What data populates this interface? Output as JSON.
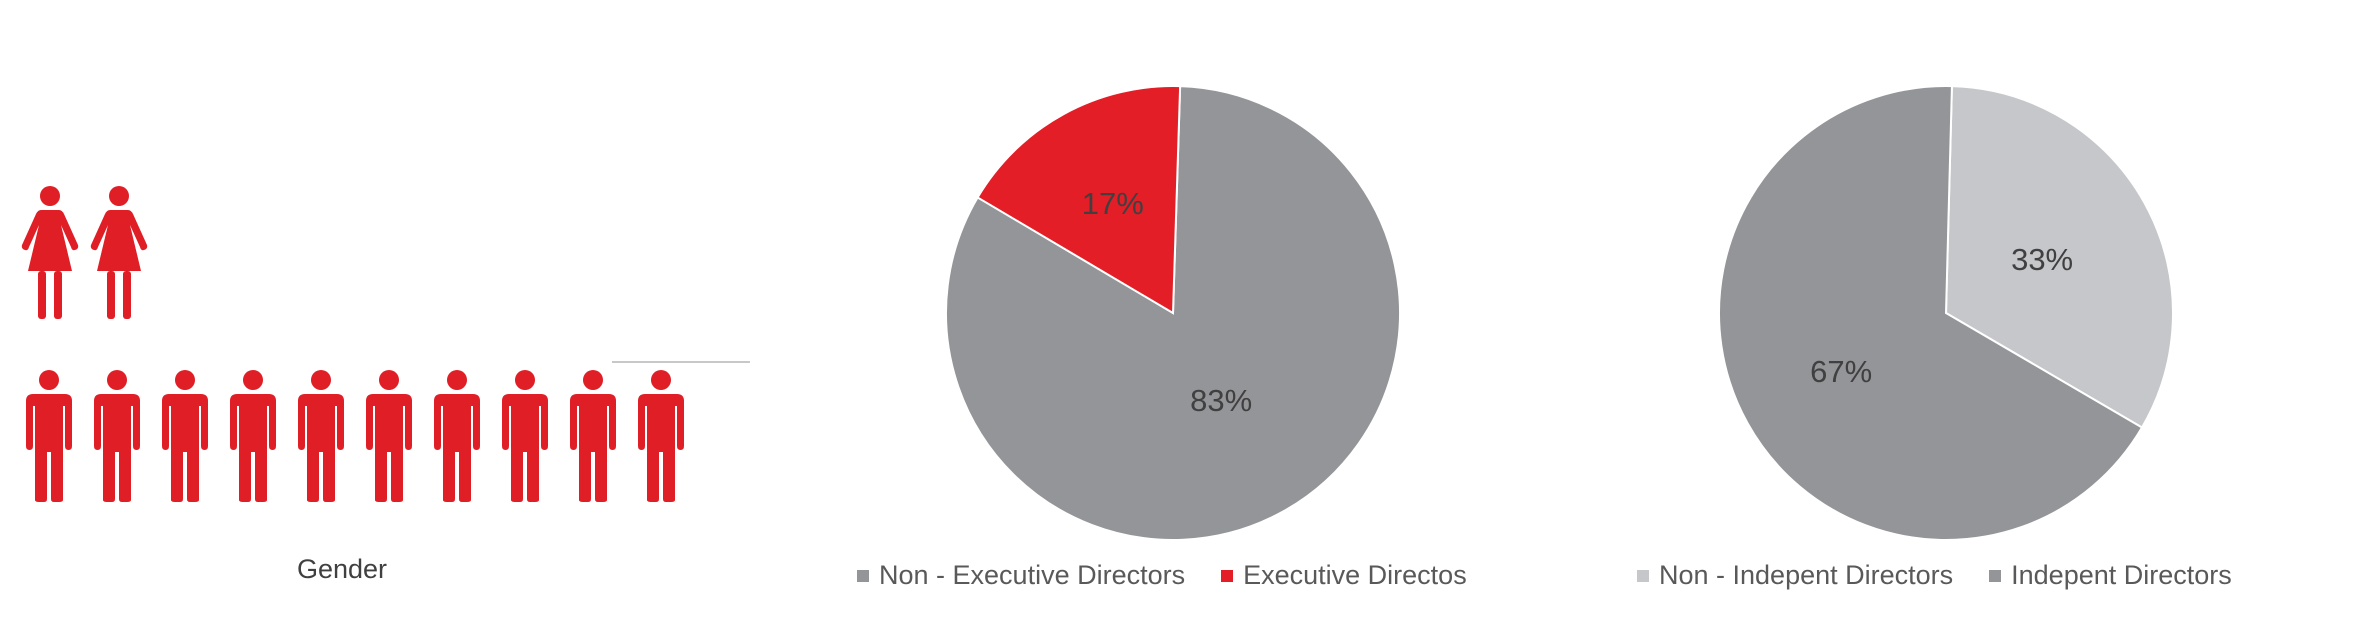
{
  "gender": {
    "label": "Gender",
    "women_count": 2,
    "men_count": 10,
    "icon_color": "#e01e26"
  },
  "chart_data": [
    {
      "type": "pie",
      "slices": [
        {
          "name": "Non - Executive Directors",
          "value": 83,
          "label": "83%",
          "color": "#939598"
        },
        {
          "name": "Executive Directos",
          "value": 17,
          "label": "17%",
          "color": "#e31e27"
        }
      ]
    },
    {
      "type": "pie",
      "slices": [
        {
          "name": "Non - Indepent Directors",
          "value": 33,
          "label": "33%",
          "color": "#c6c7ca"
        },
        {
          "name": "Indepent Directors",
          "value": 67,
          "label": "67%",
          "color": "#939598"
        }
      ]
    }
  ]
}
